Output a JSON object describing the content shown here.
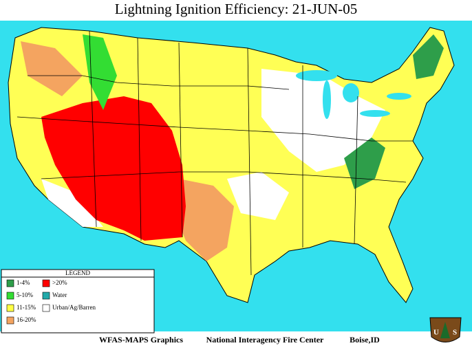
{
  "title": "Lightning Ignition Efficiency: 21-JUN-05",
  "legend": {
    "title": "LEGEND",
    "items": [
      {
        "label": "1-4%",
        "color": "#2e9e4a"
      },
      {
        "label": ">20%",
        "color": "#ff0000"
      },
      {
        "label": "5-10%",
        "color": "#33dd33"
      },
      {
        "label": "Water",
        "color": "#22aaaa"
      },
      {
        "label": "11-15%",
        "color": "#ffff44"
      },
      {
        "label": "Urban/Ag/Barren",
        "color": "#ffffff"
      },
      {
        "label": "16-20%",
        "color": "#f4a460"
      }
    ]
  },
  "footer": {
    "left": "WFAS-MAPS Graphics",
    "center": "National Interagency Fire Center",
    "right": "Boise,ID"
  },
  "badge": {
    "left": "U",
    "right": "S"
  }
}
